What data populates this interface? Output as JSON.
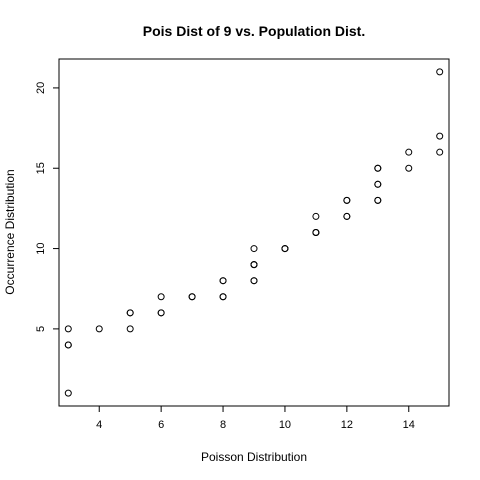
{
  "chart_data": {
    "type": "scatter",
    "title": "Pois Dist of 9 vs. Population Dist.",
    "xlabel": "Poisson Distribution",
    "ylabel": "Occurrence Distribution",
    "xlim": [
      2.7,
      15.3
    ],
    "ylim": [
      0.2,
      21.8
    ],
    "x_ticks": [
      4,
      6,
      8,
      10,
      12,
      14
    ],
    "y_ticks": [
      5,
      10,
      15,
      20
    ],
    "grid": false,
    "marker": "open-circle",
    "series": [
      {
        "points": [
          [
            3,
            5
          ],
          [
            3,
            4
          ],
          [
            3,
            4
          ],
          [
            3,
            1
          ],
          [
            4,
            5
          ],
          [
            5,
            6
          ],
          [
            5,
            6
          ],
          [
            5,
            5
          ],
          [
            6,
            7
          ],
          [
            6,
            6
          ],
          [
            6,
            6
          ],
          [
            7,
            7
          ],
          [
            7,
            7
          ],
          [
            8,
            8
          ],
          [
            8,
            8
          ],
          [
            8,
            7
          ],
          [
            8,
            7
          ],
          [
            9,
            10
          ],
          [
            9,
            9
          ],
          [
            9,
            9
          ],
          [
            9,
            9
          ],
          [
            9,
            8
          ],
          [
            9,
            8
          ],
          [
            10,
            10
          ],
          [
            10,
            10
          ],
          [
            10,
            10
          ],
          [
            11,
            12
          ],
          [
            11,
            11
          ],
          [
            11,
            11
          ],
          [
            11,
            11
          ],
          [
            12,
            13
          ],
          [
            12,
            13
          ],
          [
            12,
            12
          ],
          [
            12,
            12
          ],
          [
            13,
            15
          ],
          [
            13,
            15
          ],
          [
            13,
            14
          ],
          [
            13,
            14
          ],
          [
            13,
            13
          ],
          [
            13,
            13
          ],
          [
            14,
            16
          ],
          [
            14,
            15
          ],
          [
            15,
            21
          ],
          [
            15,
            17
          ],
          [
            15,
            16
          ]
        ]
      }
    ]
  }
}
